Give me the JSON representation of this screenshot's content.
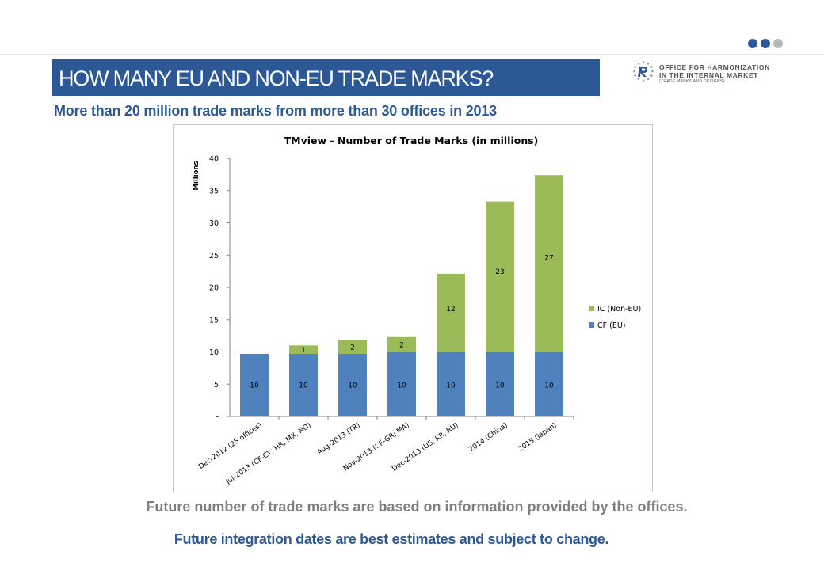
{
  "header": {
    "title": "HOW MANY EU AND NON-EU TRADE MARKS?",
    "subtitle": "More than 20 million trade marks from more than 30 offices in 2013",
    "nav_dots": [
      {
        "icon": "dot-icon",
        "color": "#2c5896"
      },
      {
        "icon": "dot-icon",
        "color": "#2c5896"
      },
      {
        "icon": "dot-icon",
        "color": "#b8b8b8"
      }
    ]
  },
  "logo": {
    "icon": "ohim-r-logo-icon",
    "line1": "OFFICE FOR HARMONIZATION",
    "line2": "IN THE INTERNAL MARKET",
    "line3": "(TRADE MARKS AND DESIGNS)"
  },
  "footer": {
    "note1": "Future number of trade marks are based on information provided by the offices.",
    "note2": "Future integration dates are best estimates and subject to change."
  },
  "colors": {
    "accent": "#2c5896",
    "eu_series": "#4f81bd",
    "non_eu_series": "#9bbb59",
    "muted_text": "#7f7f7f"
  },
  "chart_data": {
    "type": "bar",
    "stacked": true,
    "title": "TMview - Number of Trade Marks (in millions)",
    "xlabel": "",
    "ylabel": "Millions",
    "ylim": [
      0,
      40
    ],
    "yticks": [
      0,
      5,
      10,
      15,
      20,
      25,
      30,
      35,
      40
    ],
    "ytick_labels": [
      "-",
      "5",
      "10",
      "15",
      "20",
      "25",
      "30",
      "35",
      "40"
    ],
    "grid": false,
    "legend_position": "right",
    "categories": [
      "Dec-2012 (25 offices)",
      "Jul-2013 (CF-CY; HR, MX, NO)",
      "Aug-2013 (TR)",
      "Nov-2013 (CF-GR; MA)",
      "Dec-2013 (US, KR, RU)",
      "2014 (China)",
      "2015 (Japan)"
    ],
    "series": [
      {
        "name": "CF (EU)",
        "color": "#4f81bd",
        "values": [
          9.7,
          9.7,
          9.7,
          10,
          10,
          10,
          10
        ],
        "labels": [
          "10",
          "10",
          "10",
          "10",
          "10",
          "10",
          "10"
        ]
      },
      {
        "name": "IC (Non-EU)",
        "color": "#9bbb59",
        "values": [
          0,
          1.3,
          2.2,
          2.3,
          12.1,
          23.3,
          27.4
        ],
        "labels": [
          "",
          "1",
          "2",
          "2",
          "12",
          "23",
          "27"
        ]
      }
    ],
    "legend_order": [
      "IC (Non-EU)",
      "CF (EU)"
    ]
  }
}
